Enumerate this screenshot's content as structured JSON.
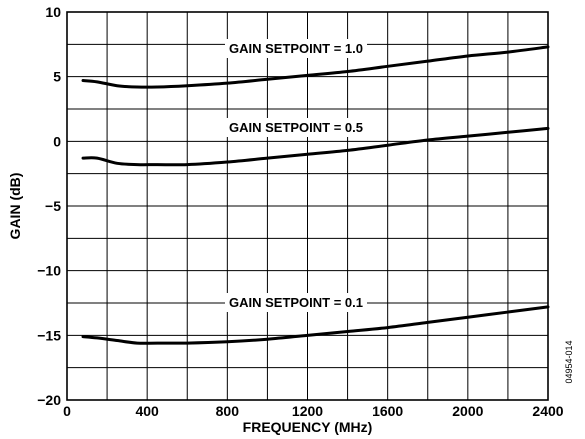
{
  "chart_data": {
    "type": "line",
    "title": "",
    "xlabel": "FREQUENCY (MHz)",
    "ylabel": "GAIN (dB)",
    "xlim": [
      0,
      2400
    ],
    "ylim": [
      -20,
      10
    ],
    "x_ticks": [
      0,
      400,
      800,
      1200,
      1600,
      2000,
      2400
    ],
    "y_ticks": [
      10,
      5,
      0,
      -5,
      -10,
      -15,
      -20
    ],
    "x_tick_labels": [
      "0",
      "400",
      "800",
      "1200",
      "1600",
      "2000",
      "2400"
    ],
    "y_tick_labels": [
      "10",
      "5",
      "0",
      "−5",
      "−10",
      "−15",
      "−20"
    ],
    "grid": true,
    "series": [
      {
        "name": "GAIN SETPOINT = 1.0",
        "x": [
          80,
          150,
          250,
          350,
          450,
          600,
          800,
          1000,
          1200,
          1400,
          1600,
          1800,
          2000,
          2200,
          2400
        ],
        "y": [
          4.7,
          4.6,
          4.3,
          4.2,
          4.2,
          4.3,
          4.5,
          4.8,
          5.1,
          5.4,
          5.8,
          6.2,
          6.6,
          6.9,
          7.3
        ]
      },
      {
        "name": "GAIN SETPOINT = 0.5",
        "x": [
          80,
          150,
          250,
          350,
          450,
          600,
          800,
          1000,
          1200,
          1400,
          1600,
          1800,
          2000,
          2200,
          2400
        ],
        "y": [
          -1.3,
          -1.3,
          -1.7,
          -1.8,
          -1.8,
          -1.8,
          -1.6,
          -1.3,
          -1.0,
          -0.7,
          -0.3,
          0.1,
          0.4,
          0.7,
          1.0
        ]
      },
      {
        "name": "GAIN SETPOINT = 0.1",
        "x": [
          80,
          150,
          250,
          350,
          450,
          600,
          800,
          1000,
          1200,
          1400,
          1600,
          1800,
          2000,
          2200,
          2400
        ],
        "y": [
          -15.1,
          -15.2,
          -15.4,
          -15.6,
          -15.6,
          -15.6,
          -15.5,
          -15.3,
          -15.0,
          -14.7,
          -14.4,
          -14.0,
          -13.6,
          -13.2,
          -12.8
        ]
      }
    ],
    "annotations": [
      "GAIN SETPOINT = 1.0",
      "GAIN SETPOINT = 0.5",
      "GAIN SETPOINT = 0.1"
    ],
    "figure_code": "04954-014",
    "colors": {
      "line": "#000000",
      "grid": "#000000",
      "background": "#ffffff"
    }
  }
}
